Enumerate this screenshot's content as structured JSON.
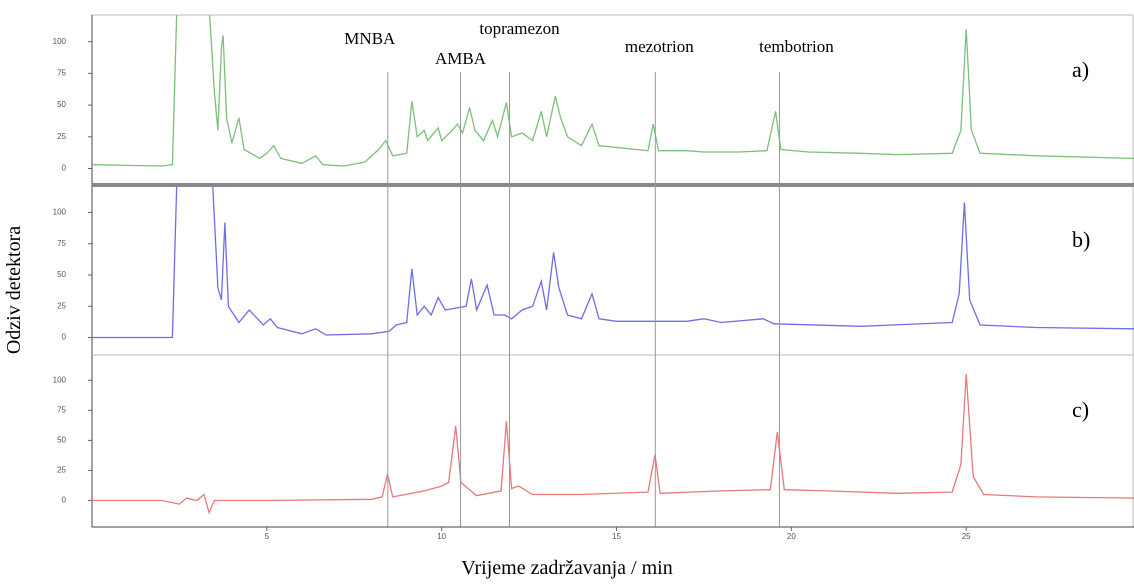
{
  "chart_data": {
    "type": "line",
    "xlabel": "Vrijeme zadržavanja / min",
    "ylabel": "Odziv detektora",
    "xlim": [
      0,
      29.8
    ],
    "xticks": [
      5,
      10,
      15,
      20,
      25
    ],
    "markers": [
      {
        "label": "MNBA",
        "x": 8.46
      },
      {
        "label": "AMBA",
        "x": 10.54
      },
      {
        "label": "topramezon",
        "x": 11.94
      },
      {
        "label": "mezotrion",
        "x": 16.11
      },
      {
        "label": "tembotrion",
        "x": 19.66
      }
    ],
    "panels": [
      {
        "label": "a)",
        "color": "#7dbf7d",
        "ylim": [
          -13,
          121
        ],
        "yticks": [
          0,
          25,
          50,
          75,
          100
        ],
        "x": [
          0,
          2,
          2.3,
          2.45,
          3.3,
          3.5,
          3.6,
          3.7,
          3.75,
          3.85,
          4,
          4.2,
          4.35,
          4.8,
          5,
          5.2,
          5.4,
          6,
          6.4,
          6.6,
          7.2,
          7.8,
          8.2,
          8.4,
          8.6,
          9,
          9.15,
          9.3,
          9.5,
          9.6,
          9.9,
          10,
          10.3,
          10.45,
          10.6,
          10.8,
          10.95,
          11.2,
          11.45,
          11.6,
          11.85,
          12,
          12.3,
          12.6,
          12.85,
          13,
          13.25,
          13.4,
          13.6,
          14,
          14.3,
          14.5,
          15.2,
          15.9,
          16.05,
          16.2,
          17,
          17.5,
          18.5,
          19.3,
          19.55,
          19.7,
          20.5,
          22,
          23,
          24.6,
          24.85,
          25,
          25.15,
          25.4,
          27,
          29.8
        ],
        "values": [
          3,
          2,
          3,
          150,
          150,
          60,
          30,
          95,
          105,
          40,
          20,
          40,
          15,
          8,
          12,
          18,
          8,
          4,
          10,
          3,
          2,
          5,
          15,
          22,
          10,
          12,
          53,
          25,
          30,
          22,
          32,
          22,
          30,
          35,
          28,
          48,
          30,
          22,
          38,
          25,
          52,
          25,
          28,
          22,
          45,
          25,
          57,
          40,
          25,
          18,
          35,
          18,
          16,
          14,
          35,
          14,
          14,
          13,
          13,
          14,
          45,
          15,
          13,
          12,
          11,
          12,
          30,
          110,
          30,
          12,
          10,
          8
        ]
      },
      {
        "label": "b)",
        "color": "#6e6ee6",
        "ylim": [
          -14,
          122
        ],
        "yticks": [
          0,
          25,
          50,
          75,
          100
        ],
        "x": [
          0,
          2.3,
          2.45,
          3.4,
          3.6,
          3.7,
          3.8,
          3.9,
          4.2,
          4.5,
          4.9,
          5.1,
          5.3,
          6,
          6.4,
          6.7,
          8,
          8.5,
          8.7,
          9,
          9.15,
          9.3,
          9.5,
          9.7,
          9.9,
          10.1,
          10.5,
          10.7,
          10.85,
          11,
          11.3,
          11.5,
          11.8,
          12,
          12.3,
          12.6,
          12.85,
          13,
          13.2,
          13.35,
          13.6,
          14,
          14.3,
          14.5,
          15,
          17,
          17.5,
          18,
          19.2,
          19.5,
          22,
          24.6,
          24.8,
          24.95,
          25.1,
          25.4,
          27,
          29.8
        ],
        "values": [
          0,
          0,
          150,
          150,
          40,
          30,
          92,
          25,
          12,
          22,
          10,
          15,
          8,
          3,
          7,
          2,
          3,
          5,
          10,
          12,
          55,
          18,
          25,
          18,
          32,
          22,
          24,
          25,
          47,
          22,
          42,
          18,
          18,
          15,
          22,
          25,
          45,
          22,
          68,
          40,
          18,
          15,
          35,
          15,
          13,
          13,
          15,
          12,
          15,
          11,
          9,
          12,
          35,
          108,
          30,
          10,
          8,
          7
        ]
      },
      {
        "label": "c)",
        "color": "#e67a7a",
        "ylim": [
          -22,
          121
        ],
        "yticks": [
          0,
          25,
          50,
          75,
          100
        ],
        "x": [
          0,
          2,
          2.5,
          2.7,
          3,
          3.2,
          3.35,
          3.5,
          5,
          8,
          8.3,
          8.45,
          8.6,
          9.5,
          10,
          10.2,
          10.4,
          10.55,
          11,
          11.7,
          11.85,
          12,
          12.2,
          12.6,
          14,
          15.9,
          16.1,
          16.25,
          18,
          19.4,
          19.6,
          19.8,
          21,
          23,
          24.6,
          24.85,
          25,
          25.2,
          25.5,
          27,
          29.8
        ],
        "values": [
          0,
          0,
          -3,
          2,
          0,
          5,
          -10,
          0,
          0,
          1,
          3,
          22,
          3,
          8,
          12,
          15,
          62,
          15,
          4,
          8,
          66,
          10,
          12,
          5,
          5,
          7,
          38,
          6,
          8,
          9,
          57,
          9,
          8,
          6,
          7,
          30,
          105,
          20,
          5,
          3,
          2
        ]
      }
    ]
  }
}
